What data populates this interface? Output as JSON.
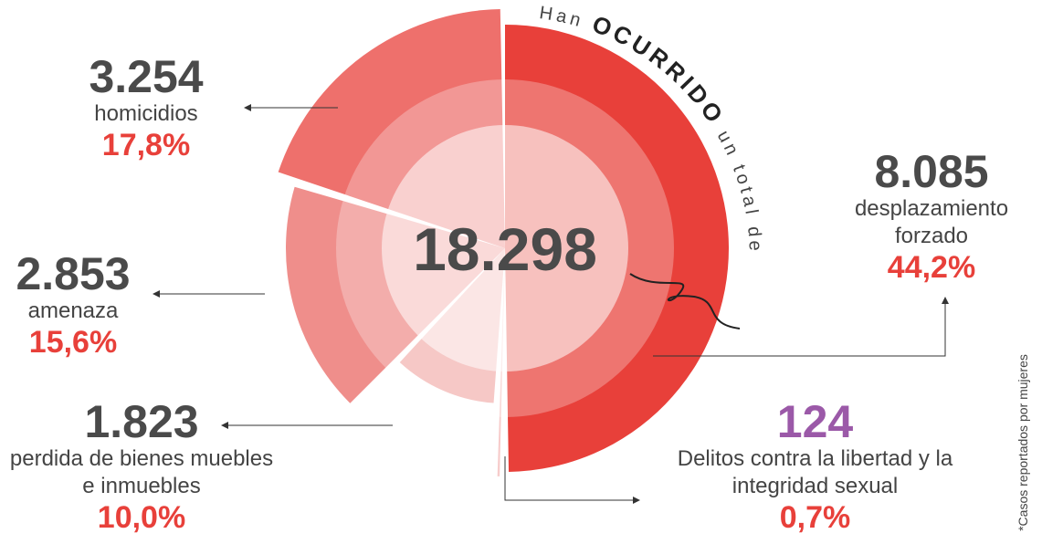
{
  "chart_data": {
    "type": "polar",
    "annotation": [
      "Han",
      "OCURRIDO",
      "un total de"
    ],
    "total": {
      "value": 18298,
      "label": "18.298"
    },
    "categories": [
      "desplazamiento forzado",
      "Delitos contra la libertad y la integridad sexual",
      "perdida de bienes muebles e inmuebles",
      "amenaza",
      "homicidios"
    ],
    "values": [
      8085,
      124,
      1823,
      2853,
      3254
    ],
    "value_labels": [
      "8.085",
      "124",
      "1.823",
      "2.853",
      "3.254"
    ],
    "shares": [
      44.2,
      0.7,
      10.0,
      15.6,
      17.8
    ],
    "share_labels": [
      "44,2%",
      "0,7%",
      "10,0%",
      "15,6%",
      "17,8%"
    ],
    "colors": [
      "#e8403a",
      "#f7cccb",
      "#f3b3b1",
      "#ef8e8b",
      "#ee706c"
    ],
    "note": "*Casos reportados por mujeres"
  }
}
